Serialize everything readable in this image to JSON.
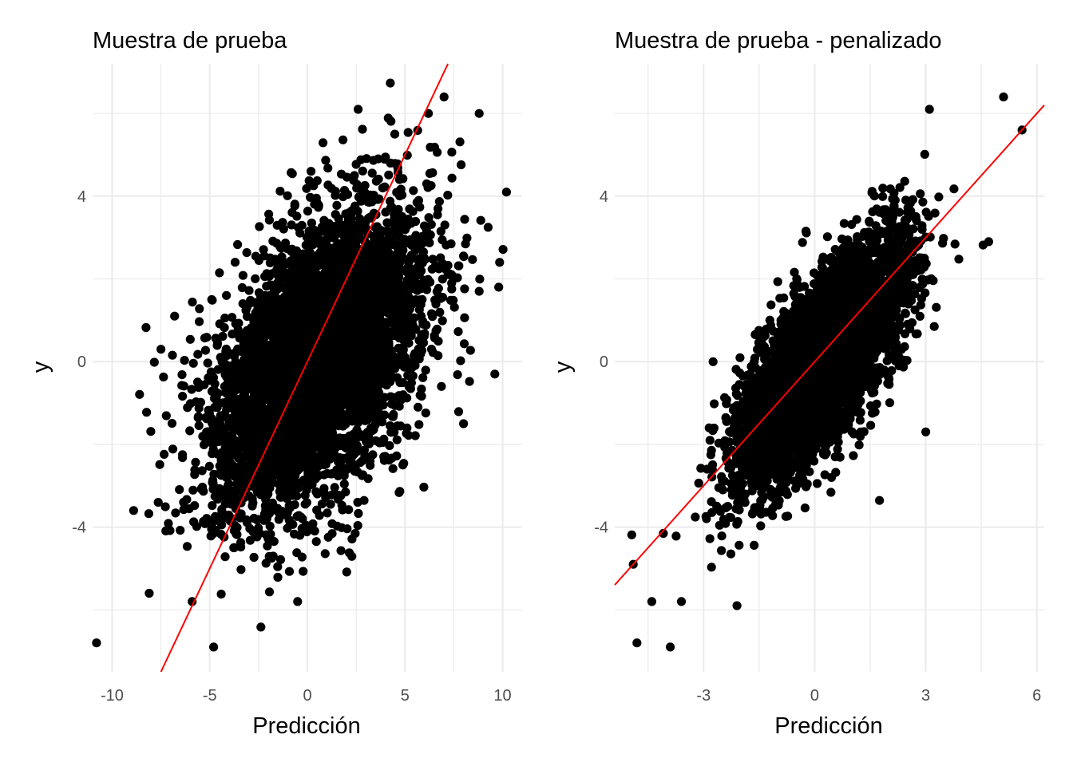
{
  "chart_data": [
    {
      "type": "scatter",
      "title": "Muestra de prueba",
      "xlabel": "Predicción",
      "ylabel": "y",
      "xlim": [
        -11,
        11
      ],
      "ylim": [
        -7.5,
        7.2
      ],
      "xticks": [
        -10,
        -5,
        0,
        5,
        10
      ],
      "xtick_labels": [
        "-10",
        "-5",
        "0",
        "5",
        "10"
      ],
      "yticks": [
        -4,
        0,
        4
      ],
      "ytick_labels": [
        "-4",
        "0",
        "4"
      ],
      "grid": true,
      "point_color": "#000000",
      "n_points": 5000,
      "point_distribution": {
        "x_mean": 0.5,
        "x_sd": 2.7,
        "slope": 0.33,
        "y_mean": 0.0,
        "resid_sd": 1.6
      },
      "reference_line": {
        "intercept": 0,
        "slope": 1,
        "color": "#ff0000"
      },
      "points": [
        [
          -10.8,
          -6.8
        ],
        [
          -4.8,
          -6.9
        ],
        [
          7.0,
          6.4
        ],
        [
          10.2,
          4.1
        ],
        [
          9.8,
          1.8
        ],
        [
          8.8,
          6.0
        ],
        [
          -8.1,
          -5.6
        ],
        [
          -8.9,
          -3.6
        ],
        [
          -6.8,
          1.1
        ],
        [
          -7.5,
          0.3
        ],
        [
          6.2,
          6.0
        ],
        [
          -5.9,
          -5.8
        ],
        [
          -0.5,
          -5.8
        ],
        [
          2.6,
          6.1
        ],
        [
          8.0,
          -1.5
        ],
        [
          8.8,
          1.7
        ],
        [
          9.6,
          -0.3
        ]
      ]
    },
    {
      "type": "scatter",
      "title": "Muestra de prueba - penalizado",
      "xlabel": "Predicción",
      "ylabel": "y",
      "xlim": [
        -5.4,
        6.2
      ],
      "ylim": [
        -7.5,
        7.2
      ],
      "xticks": [
        -3,
        0,
        3,
        6
      ],
      "xtick_labels": [
        "-3",
        "0",
        "3",
        "6"
      ],
      "yticks": [
        -4,
        0,
        4
      ],
      "ytick_labels": [
        "-4",
        "0",
        "4"
      ],
      "grid": true,
      "point_color": "#000000",
      "n_points": 5000,
      "point_distribution": {
        "x_mean": 0.2,
        "x_sd": 1.1,
        "slope": 0.95,
        "y_mean": 0.0,
        "resid_sd": 1.0
      },
      "reference_line": {
        "intercept": 0,
        "slope": 1,
        "color": "#ff0000"
      },
      "points": [
        [
          -4.8,
          -6.8
        ],
        [
          -3.9,
          -6.9
        ],
        [
          5.1,
          6.4
        ],
        [
          5.6,
          5.6
        ],
        [
          4.7,
          2.9
        ],
        [
          -4.9,
          -4.9
        ],
        [
          -4.4,
          -5.8
        ],
        [
          -3.6,
          -5.8
        ],
        [
          -2.1,
          -5.9
        ],
        [
          3.1,
          6.1
        ],
        [
          3.0,
          -1.7
        ]
      ]
    }
  ],
  "colors": {
    "points": "#000000",
    "reference_line": "#ff0000",
    "grid": "#ebebeb",
    "tick_text": "#4d4d4d",
    "text": "#000000"
  }
}
